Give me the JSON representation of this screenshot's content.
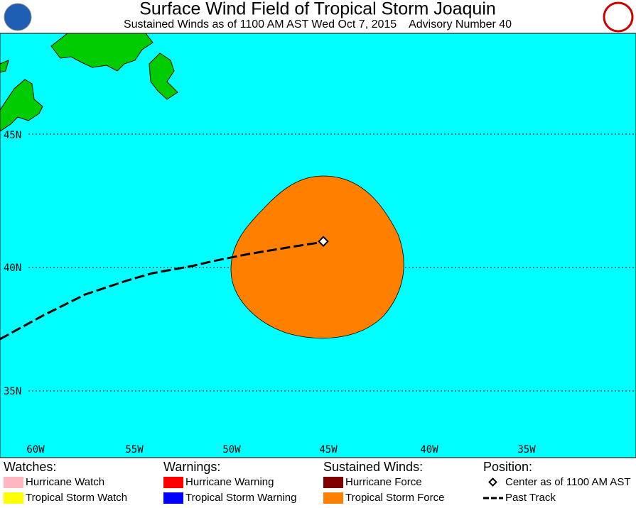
{
  "header": {
    "title": "Surface Wind Field of Tropical Storm Joaquin",
    "subtitle": "Sustained Winds as of 1100 AM AST Wed Oct 7, 2015    Advisory Number 40"
  },
  "map": {
    "lat_labels": [
      "45N",
      "40N",
      "35N"
    ],
    "lon_labels": [
      "60W",
      "55W",
      "50W",
      "45W",
      "40W",
      "35W"
    ]
  },
  "legend": {
    "watches": {
      "heading": "Watches:",
      "items": [
        "Hurricane Watch",
        "Tropical Storm Watch"
      ]
    },
    "warnings": {
      "heading": "Warnings:",
      "items": [
        "Hurricane Warning",
        "Tropical Storm Warning"
      ]
    },
    "winds": {
      "heading": "Sustained Winds:",
      "items": [
        "Hurricane Force",
        "Tropical Storm Force"
      ]
    },
    "position": {
      "heading": "Position:",
      "items": [
        "Center as of 1100 AM AST",
        "Past Track"
      ]
    }
  }
}
